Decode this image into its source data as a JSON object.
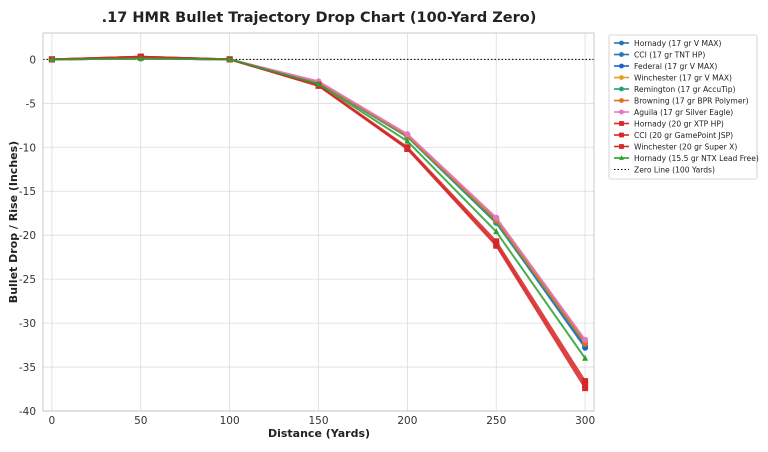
{
  "chart_data": {
    "type": "line",
    "title": ".17 HMR Bullet Trajectory Drop Chart (100-Yard Zero)",
    "xlabel": "Distance (Yards)",
    "ylabel": "Bullet Drop / Rise (Inches)",
    "x": [
      0,
      50,
      100,
      150,
      200,
      250,
      300
    ],
    "xlim": [
      -5,
      305
    ],
    "ylim": [
      -40,
      3
    ],
    "xticks": [
      0,
      50,
      100,
      150,
      200,
      250,
      300
    ],
    "yticks": [
      0,
      -5,
      -10,
      -15,
      -20,
      -25,
      -30,
      -35,
      -40
    ],
    "grid": true,
    "legend_position": "outside-right",
    "series": [
      {
        "name": "Hornady (17 gr V MAX)",
        "color": "#1f77b4",
        "marker": "circle",
        "values": [
          0,
          0.1,
          0,
          -2.6,
          -8.6,
          -18.1,
          -32.0
        ]
      },
      {
        "name": "CCI (17 gr TNT HP)",
        "color": "#1f77b4",
        "marker": "circle",
        "values": [
          0,
          0.1,
          0,
          -2.7,
          -8.8,
          -18.6,
          -32.6
        ]
      },
      {
        "name": "Federal (17 gr V MAX)",
        "color": "#2060c8",
        "marker": "circle",
        "values": [
          0,
          0.1,
          0,
          -2.6,
          -8.7,
          -18.5,
          -32.8
        ]
      },
      {
        "name": "Winchester (17 gr V MAX)",
        "color": "#e6a020",
        "marker": "circle",
        "values": [
          0,
          0.1,
          0,
          -2.6,
          -8.6,
          -18.2,
          -32.1
        ]
      },
      {
        "name": "Remington (17 gr AccuTip)",
        "color": "#20a080",
        "marker": "circle",
        "values": [
          0,
          0.1,
          0,
          -2.7,
          -8.8,
          -18.6,
          -32.4
        ]
      },
      {
        "name": "Browning (17 gr BPR Polymer)",
        "color": "#e07020",
        "marker": "circle",
        "values": [
          0,
          0.1,
          0,
          -2.6,
          -8.7,
          -18.3,
          -32.3
        ]
      },
      {
        "name": "Aguila (17 gr Silver Eagle)",
        "color": "#e377c2",
        "marker": "circle",
        "values": [
          0,
          0.1,
          0,
          -2.5,
          -8.5,
          -18.0,
          -31.9
        ]
      },
      {
        "name": "Hornady (20 gr XTP HP)",
        "color": "#d62728",
        "marker": "square",
        "values": [
          0,
          0.3,
          0,
          -3.0,
          -10.2,
          -21.2,
          -37.4
        ]
      },
      {
        "name": "CCI (20 gr GamePoint JSP)",
        "color": "#d62728",
        "marker": "square",
        "values": [
          0,
          0.3,
          0,
          -2.9,
          -10.0,
          -20.7,
          -36.6
        ]
      },
      {
        "name": "Winchester (20 gr Super X)",
        "color": "#d62728",
        "marker": "square",
        "values": [
          0,
          0.3,
          0,
          -3.0,
          -10.1,
          -21.0,
          -37.0
        ]
      },
      {
        "name": "Hornady (15.5 gr NTX Lead Free)",
        "color": "#2ca02c",
        "marker": "triangle",
        "values": [
          0,
          0.1,
          0,
          -2.8,
          -9.3,
          -19.6,
          -34.0
        ]
      }
    ],
    "zero_line": {
      "name": "Zero Line (100 Yards)",
      "value": 0,
      "color": "#000000",
      "style": "dotted"
    }
  }
}
